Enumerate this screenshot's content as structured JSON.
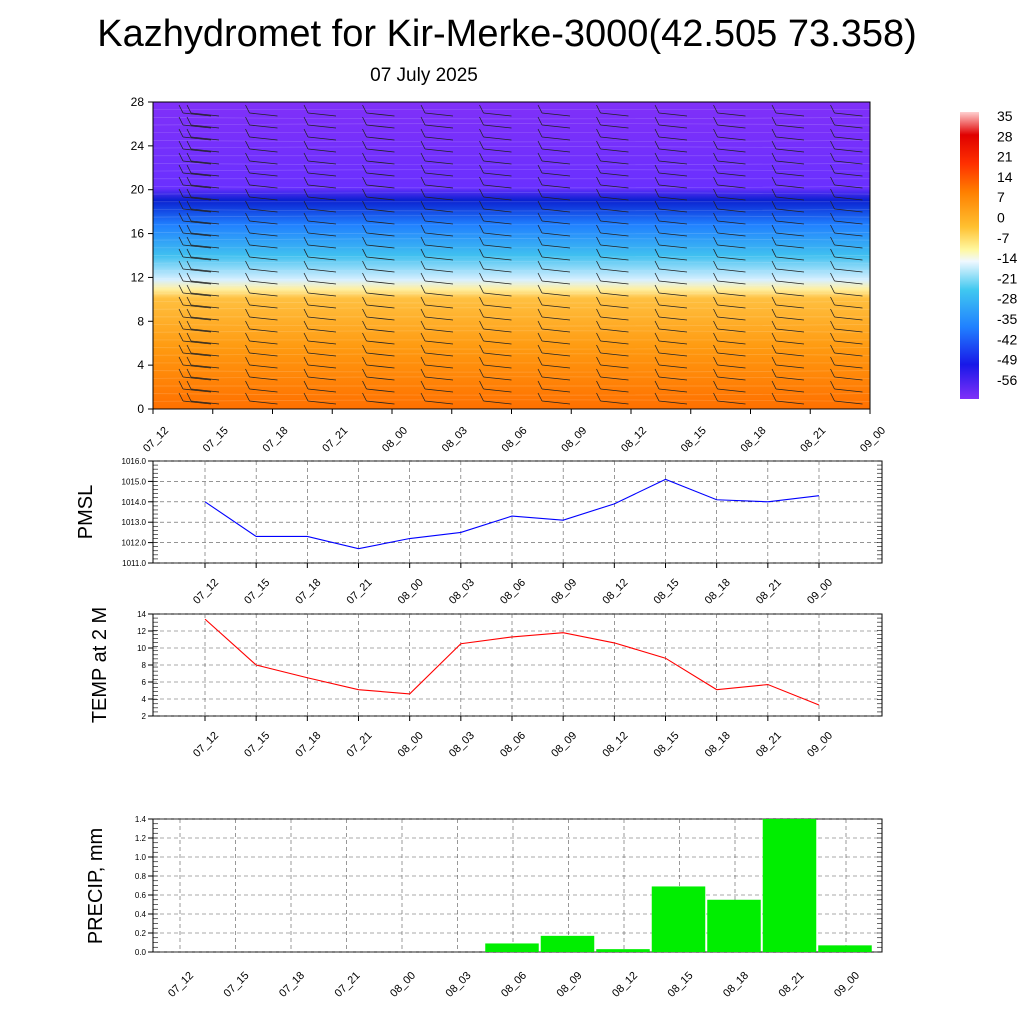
{
  "title": "Kazhydromet for Kir-Merke-3000(42.505 73.358)",
  "subtitle": "07 July 2025",
  "colors": {
    "pmsl_line": "#0000ff",
    "temp_line": "#ff0000",
    "precip_bar": "#00ee00"
  },
  "chart_data": [
    {
      "type": "heatmap",
      "title": "",
      "xlabel": "",
      "ylabel": "",
      "x": [
        "07_12",
        "07_15",
        "07_18",
        "07_21",
        "08_00",
        "08_03",
        "08_06",
        "08_09",
        "08_12",
        "08_15",
        "08_18",
        "08_21",
        "09_00"
      ],
      "yticks": [
        0,
        4,
        8,
        12,
        16,
        20,
        24,
        28
      ],
      "ylim": [
        0,
        28
      ],
      "colorbar_labels": [
        "35",
        "28",
        "21",
        "14",
        "7",
        "0",
        "-7",
        "-14",
        "-21",
        "-28",
        "-35",
        "-42",
        "-49",
        "-56"
      ],
      "levels_description": "temperature by level",
      "overlay": "wind barbs"
    },
    {
      "type": "line",
      "ylabel": "PMSL",
      "x": [
        "07_12",
        "07_15",
        "07_18",
        "07_21",
        "08_00",
        "08_03",
        "08_06",
        "08_09",
        "08_12",
        "08_15",
        "08_18",
        "08_21",
        "09_00"
      ],
      "values": [
        1014.0,
        1012.3,
        1012.3,
        1011.7,
        1012.2,
        1012.5,
        1013.3,
        1013.1,
        1013.9,
        1015.1,
        1014.1,
        1014.0,
        1014.3
      ],
      "ylim": [
        1011.0,
        1016.0
      ],
      "yticks": [
        "1011.0",
        "1012.0",
        "1013.0",
        "1014.0",
        "1015.0",
        "1016.0"
      ]
    },
    {
      "type": "line",
      "ylabel": "TEMP at 2 M",
      "x": [
        "07_12",
        "07_15",
        "07_18",
        "07_21",
        "08_00",
        "08_03",
        "08_06",
        "08_09",
        "08_12",
        "08_15",
        "08_18",
        "08_21",
        "09_00"
      ],
      "values": [
        13.4,
        8.0,
        6.5,
        5.1,
        4.6,
        10.5,
        11.3,
        11.8,
        10.6,
        8.8,
        5.1,
        5.7,
        3.3
      ],
      "ylim": [
        2,
        14
      ],
      "yticks": [
        "2",
        "4",
        "6",
        "8",
        "10",
        "12",
        "14"
      ]
    },
    {
      "type": "bar",
      "ylabel": "PRECIP, mm",
      "categories": [
        "07_12",
        "07_15",
        "07_18",
        "07_21",
        "08_00",
        "08_03",
        "08_06",
        "08_09",
        "08_12",
        "08_15",
        "08_18",
        "08_21",
        "09_00"
      ],
      "values": [
        0,
        0,
        0,
        0,
        0,
        0,
        0.09,
        0.17,
        0.03,
        0.69,
        0.55,
        1.4,
        0.07
      ],
      "ylim": [
        0,
        1.4
      ],
      "yticks": [
        "0.0",
        "0.2",
        "0.4",
        "0.6",
        "0.8",
        "1.0",
        "1.2",
        "1.4"
      ]
    }
  ]
}
